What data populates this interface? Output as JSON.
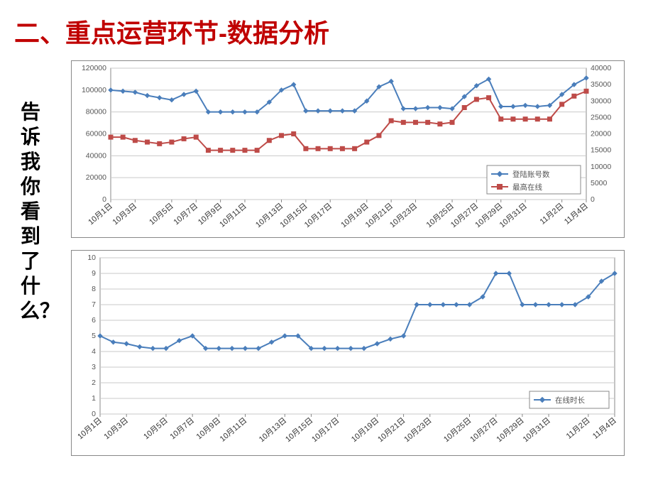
{
  "title": "二、重点运营环节-数据分析",
  "side_text": "告诉我你看到了什么？",
  "dates": [
    "10月1日",
    "10月3日",
    "10月5日",
    "10月7日",
    "10月9日",
    "10月11日",
    "10月13日",
    "10月15日",
    "10月17日",
    "10月19日",
    "10月21日",
    "10月23日",
    "10月25日",
    "10月27日",
    "10月29日",
    "10月31日",
    "11月2日",
    "11月4日"
  ],
  "chart1": {
    "type": "line-dual-axis",
    "background_color": "#ffffff",
    "grid_color": "#c9c9c9",
    "border_color": "#888888",
    "font_size_axis": 10.5,
    "left_axis": {
      "min": 0,
      "max": 120000,
      "step": 20000
    },
    "right_axis": {
      "min": 0,
      "max": 40000,
      "step": 5000
    },
    "series": [
      {
        "name": "登陆账号数",
        "legend": "登陆账号数",
        "axis": "left",
        "color": "#4a7ebb",
        "marker": "diamond",
        "marker_size": 6,
        "line_width": 2,
        "values": [
          100000,
          99000,
          98000,
          95000,
          93000,
          91000,
          96000,
          99000,
          80000,
          80000,
          80000,
          80000,
          80000,
          89000,
          100000,
          105000,
          81000,
          81000,
          81000,
          81000,
          81000,
          90000,
          103000,
          108000,
          83000,
          83000,
          84000,
          84000,
          83000,
          94000,
          104000,
          110000,
          85000,
          85000,
          86000,
          85000,
          86000,
          96000,
          105000,
          111000
        ]
      },
      {
        "name": "最高在线",
        "legend": "最高在线",
        "axis": "right",
        "color": "#be4b48",
        "marker": "square",
        "marker_size": 6,
        "line_width": 2,
        "values": [
          19000,
          19000,
          18000,
          17500,
          17000,
          17500,
          18500,
          19000,
          15000,
          15000,
          15000,
          15000,
          15000,
          18000,
          19500,
          20000,
          15500,
          15500,
          15500,
          15500,
          15500,
          17500,
          19500,
          24000,
          23500,
          23500,
          23500,
          23000,
          23500,
          28000,
          30500,
          31000,
          24500,
          24500,
          24500,
          24500,
          24500,
          29000,
          31500,
          33000
        ]
      }
    ]
  },
  "chart2": {
    "type": "line",
    "background_color": "#ffffff",
    "grid_color": "#c9c9c9",
    "border_color": "#888888",
    "font_size_axis": 10.5,
    "y_axis": {
      "min": 0,
      "max": 10,
      "step": 1
    },
    "series": [
      {
        "name": "在线时长",
        "legend": "在线时长",
        "color": "#4a7ebb",
        "marker": "diamond",
        "marker_size": 6,
        "line_width": 2,
        "values": [
          5,
          4.6,
          4.5,
          4.3,
          4.2,
          4.2,
          4.7,
          5,
          4.2,
          4.2,
          4.2,
          4.2,
          4.2,
          4.6,
          5,
          5,
          4.2,
          4.2,
          4.2,
          4.2,
          4.2,
          4.5,
          4.8,
          5,
          7,
          7,
          7,
          7,
          7,
          7.5,
          9,
          9,
          7,
          7,
          7,
          7,
          7,
          7.5,
          8.5,
          9
        ]
      }
    ]
  }
}
